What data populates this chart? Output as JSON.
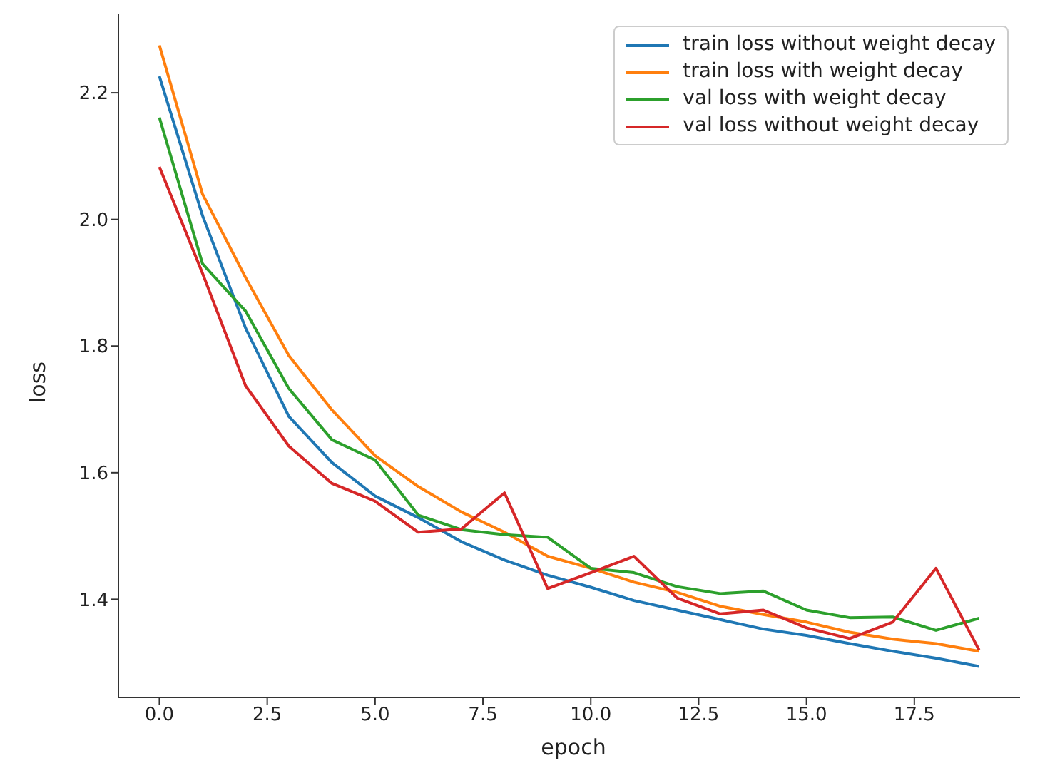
{
  "chart_data": {
    "type": "line",
    "xlabel": "epoch",
    "ylabel": "loss",
    "x": [
      0,
      1,
      2,
      3,
      4,
      5,
      6,
      7,
      8,
      9,
      10,
      11,
      12,
      13,
      14,
      15,
      16,
      17,
      18,
      19
    ],
    "series": [
      {
        "name": "train loss without weight decay",
        "color": "#1f77b4",
        "values": [
          2.226,
          2.006,
          1.828,
          1.689,
          1.616,
          1.563,
          1.529,
          1.491,
          1.462,
          1.438,
          1.419,
          1.398,
          1.383,
          1.368,
          1.353,
          1.343,
          1.33,
          1.318,
          1.307,
          1.294
        ]
      },
      {
        "name": "train loss with weight decay",
        "color": "#ff7f0e",
        "values": [
          2.275,
          2.04,
          1.908,
          1.785,
          1.699,
          1.627,
          1.578,
          1.538,
          1.506,
          1.468,
          1.449,
          1.427,
          1.411,
          1.389,
          1.376,
          1.364,
          1.348,
          1.337,
          1.33,
          1.318
        ]
      },
      {
        "name": "val loss with weight decay",
        "color": "#2ca02c",
        "values": [
          2.161,
          1.93,
          1.855,
          1.733,
          1.652,
          1.62,
          1.533,
          1.51,
          1.502,
          1.498,
          1.449,
          1.442,
          1.42,
          1.409,
          1.413,
          1.383,
          1.371,
          1.372,
          1.351,
          1.37
        ]
      },
      {
        "name": "val loss without weight decay",
        "color": "#d62728",
        "values": [
          2.083,
          1.915,
          1.737,
          1.642,
          1.583,
          1.555,
          1.506,
          1.511,
          1.568,
          1.417,
          1.442,
          1.468,
          1.402,
          1.377,
          1.383,
          1.355,
          1.338,
          1.364,
          1.449,
          1.32
        ]
      }
    ],
    "xlim": [
      -0.95,
      19.95
    ],
    "xticks": [
      {
        "value": 0,
        "label": "0.0"
      },
      {
        "value": 2.5,
        "label": "2.5"
      },
      {
        "value": 5,
        "label": "5.0"
      },
      {
        "value": 7.5,
        "label": "7.5"
      },
      {
        "value": 10,
        "label": "10.0"
      },
      {
        "value": 12.5,
        "label": "12.5"
      },
      {
        "value": 15,
        "label": "15.0"
      },
      {
        "value": 17.5,
        "label": "17.5"
      }
    ],
    "ylim": [
      1.245,
      2.324
    ],
    "yticks": [
      1.4,
      1.6,
      1.8,
      {
        "value": 2,
        "label": "2.0"
      },
      2.2
    ],
    "grid": false,
    "legend": "top right",
    "marker": "none",
    "line_style": "solid"
  }
}
